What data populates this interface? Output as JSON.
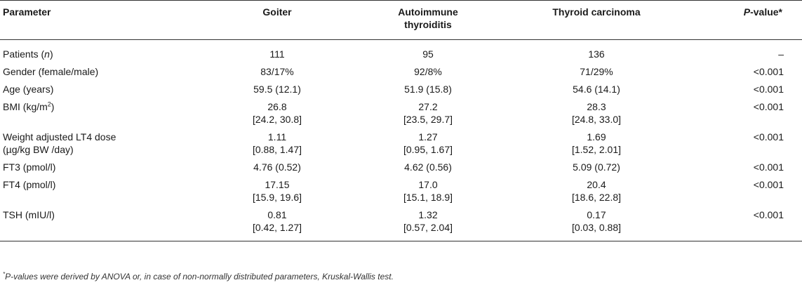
{
  "header": {
    "parameter": "Parameter",
    "goiter": "Goiter",
    "autoimmune_line1": "Autoimmune",
    "autoimmune_line2": "thyroiditis",
    "carcinoma": "Thyroid carcinoma",
    "pvalue_italic": "P",
    "pvalue_rest": "-value*"
  },
  "rows": {
    "patients": {
      "label_pre": "Patients (",
      "label_italic": "n",
      "label_post": ")",
      "goiter": "111",
      "ait": "95",
      "carcinoma": "136",
      "p": "–"
    },
    "gender": {
      "label": "Gender (female/male)",
      "goiter": "83/17%",
      "ait": "92/8%",
      "carcinoma": "71/29%",
      "p": "<0.001"
    },
    "age": {
      "label": "Age (years)",
      "goiter": "59.5 (12.1)",
      "ait": "51.9 (15.8)",
      "carcinoma": "54.6 (14.1)",
      "p": "<0.001"
    },
    "bmi": {
      "label_pre": "BMI (kg/m",
      "label_sup": "2",
      "label_post": ")",
      "goiter_1": "26.8",
      "goiter_2": "[24.2, 30.8]",
      "ait_1": "27.2",
      "ait_2": "[23.5, 29.7]",
      "carcinoma_1": "28.3",
      "carcinoma_2": "[24.8, 33.0]",
      "p": "<0.001"
    },
    "lt4": {
      "label_1": "Weight adjusted LT4 dose",
      "label_2": "(µg/kg BW /day)",
      "goiter_1": "1.11",
      "goiter_2": "[0.88, 1.47]",
      "ait_1": "1.27",
      "ait_2": "[0.95, 1.67]",
      "carcinoma_1": "1.69",
      "carcinoma_2": "[1.52, 2.01]",
      "p": "<0.001"
    },
    "ft3": {
      "label": "FT3 (pmol/l)",
      "goiter": "4.76 (0.52)",
      "ait": "4.62 (0.56)",
      "carcinoma": "5.09 (0.72)",
      "p": "<0.001"
    },
    "ft4": {
      "label": "FT4 (pmol/l)",
      "goiter_1": "17.15",
      "goiter_2": "[15.9, 19.6]",
      "ait_1": "17.0",
      "ait_2": "[15.1, 18.9]",
      "carcinoma_1": "20.4",
      "carcinoma_2": "[18.6, 22.8]",
      "p": "<0.001"
    },
    "tsh": {
      "label": "TSH (mIU/l)",
      "goiter_1": "0.81",
      "goiter_2": "[0.42, 1.27]",
      "ait_1": "1.32",
      "ait_2": "[0.57, 2.04]",
      "carcinoma_1": "0.17",
      "carcinoma_2": "[0.03, 0.88]",
      "p": "<0.001"
    }
  },
  "footnote": {
    "star": "*",
    "p_italic": "P",
    "text": "-values were derived by ANOVA or, in case of non-normally distributed parameters, Kruskal-Wallis test."
  }
}
